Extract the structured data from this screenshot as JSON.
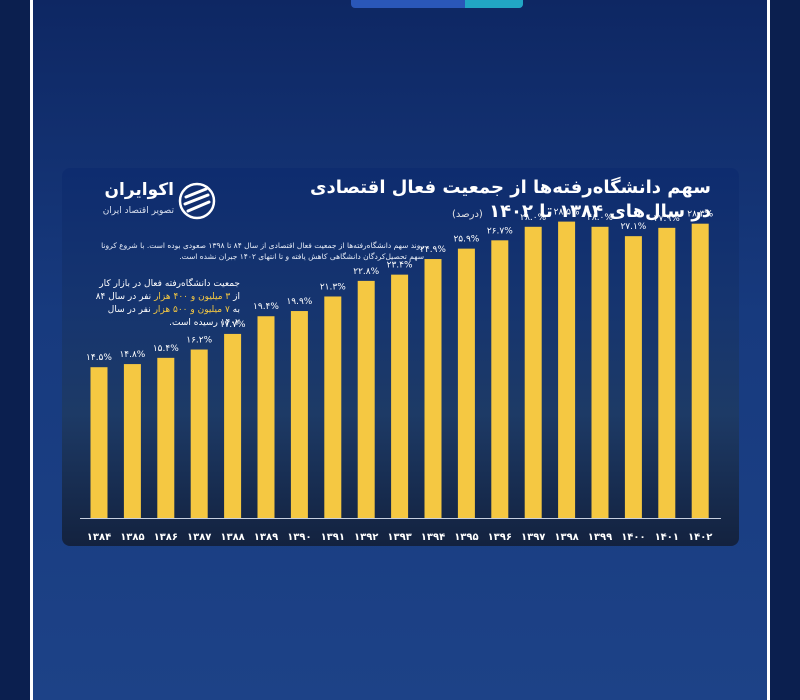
{
  "header": {
    "title_line1": "سهم دانشگاه‌رفته‌ها از جمعیت فعال اقتصادی",
    "title_line2": "در سال‌های ۱۳۸۴ تا ۱۴۰۲",
    "title_unit": "(درصد)"
  },
  "brand": {
    "name": "اکوایران",
    "subtitle": "تصویر اقتصاد ایران"
  },
  "notes": {
    "trend": "روند سهم دانشگاه‌رفته‌ها از جمعیت فعال اقتصادی از سال ۸۴ تا ۱۳۹۸ صعودی بوده است. با شروع کرونا سهم تحصیل‌کردگان دانشگاهی کاهش یافته و تا انتهای ۱۴۰۲ جبران نشده است.",
    "population_part1": "جمعیت دانشگاه‌رفته فعال در بازار کار از",
    "population_hl1": "۳ میلیون و ۴۰۰ هزار",
    "population_part2": "نفر در سال ۸۴ به",
    "population_hl2": "۷ میلیون و ۵۰۰ هزار",
    "population_part3": "نفر در سال ۱۴۰۲ رسیده است."
  },
  "colors": {
    "bar": "#f5c842",
    "label": "#ffffff"
  },
  "chart_data": {
    "type": "bar",
    "title": "سهم دانشگاه‌رفته‌ها از جمعیت فعال اقتصادی در سال‌های ۱۳۸۴ تا ۱۴۰۲ (درصد)",
    "categories": [
      "۱۳۸۴",
      "۱۳۸۵",
      "۱۳۸۶",
      "۱۳۸۷",
      "۱۳۸۸",
      "۱۳۸۹",
      "۱۳۹۰",
      "۱۳۹۱",
      "۱۳۹۲",
      "۱۳۹۳",
      "۱۳۹۴",
      "۱۳۹۵",
      "۱۳۹۶",
      "۱۳۹۷",
      "۱۳۹۸",
      "۱۳۹۹",
      "۱۴۰۰",
      "۱۴۰۱",
      "۱۴۰۲"
    ],
    "values": [
      14.5,
      14.8,
      15.4,
      16.2,
      17.7,
      19.4,
      19.9,
      21.3,
      22.8,
      23.4,
      24.9,
      25.9,
      26.7,
      28.0,
      28.5,
      28.0,
      27.1,
      27.9,
      28.3
    ],
    "data_labels": [
      "۱۴.۵%",
      "۱۴.۸%",
      "۱۵.۴%",
      "۱۶.۲%",
      "۱۷.۷%",
      "۱۹.۴%",
      "۱۹.۹%",
      "۲۱.۳%",
      "۲۲.۸%",
      "۲۳.۴%",
      "۲۴.۹%",
      "۲۵.۹%",
      "۲۶.۷%",
      "۲۸.۰%",
      "۲۸.۵%",
      "۲۸.۰%",
      "۲۷.۱%",
      "۲۷.۹%",
      "۲۸.۳%"
    ],
    "xlabel": "",
    "ylabel": "",
    "grid": false,
    "legend": "none"
  }
}
